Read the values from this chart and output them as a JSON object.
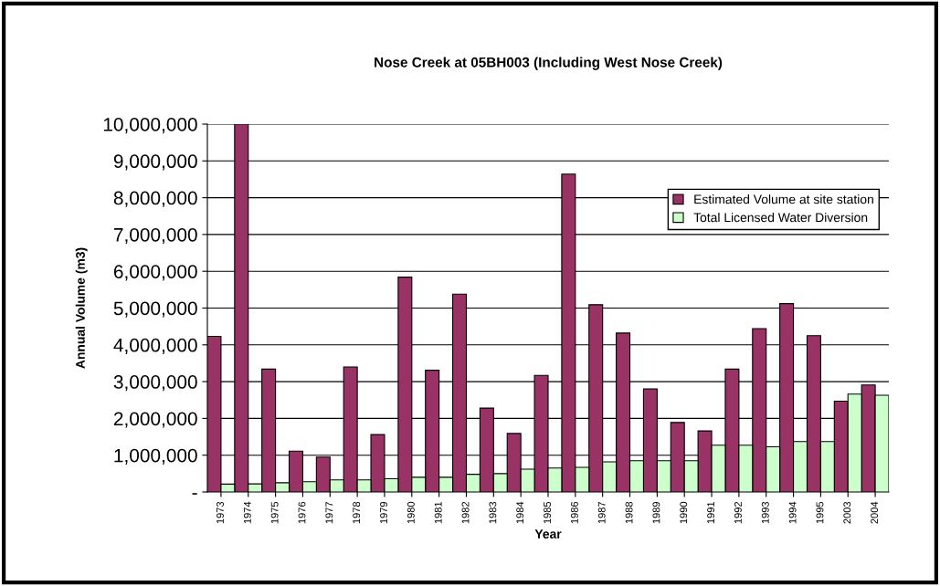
{
  "chart_data": {
    "type": "bar",
    "title": "Nose Creek at 05BH003 (Including West Nose Creek)",
    "xlabel": "Year",
    "ylabel": "Annual Volume (m3)",
    "categories": [
      "1973",
      "1974",
      "1975",
      "1976",
      "1977",
      "1978",
      "1979",
      "1980",
      "1981",
      "1982",
      "1983",
      "1984",
      "1985",
      "1986",
      "1987",
      "1988",
      "1989",
      "1990",
      "1991",
      "1992",
      "1993",
      "1994",
      "1995",
      "2003",
      "2004"
    ],
    "series": [
      {
        "name": "Estimated Volume at site station",
        "color": "#993366",
        "values": [
          4230000,
          10000000,
          3340000,
          1110000,
          950000,
          3400000,
          1560000,
          5840000,
          3310000,
          5380000,
          2280000,
          1590000,
          3170000,
          8640000,
          5090000,
          4320000,
          2800000,
          1890000,
          1660000,
          3340000,
          4440000,
          5120000,
          4250000,
          2470000,
          2910000
        ]
      },
      {
        "name": "Total Licensed Water Diversion",
        "color": "#ccffcc",
        "values": [
          215000,
          220000,
          250000,
          280000,
          330000,
          330000,
          360000,
          400000,
          400000,
          480000,
          500000,
          620000,
          650000,
          670000,
          820000,
          850000,
          850000,
          850000,
          1270000,
          1270000,
          1230000,
          1370000,
          1370000,
          2660000,
          2630000
        ]
      }
    ],
    "ylim": [
      0,
      10000000
    ],
    "yticks": [
      {
        "value": 0,
        "label": "-"
      },
      {
        "value": 1000000,
        "label": "1,000,000"
      },
      {
        "value": 2000000,
        "label": "2,000,000"
      },
      {
        "value": 3000000,
        "label": "3,000,000"
      },
      {
        "value": 4000000,
        "label": "4,000,000"
      },
      {
        "value": 5000000,
        "label": "5,000,000"
      },
      {
        "value": 6000000,
        "label": "6,000,000"
      },
      {
        "value": 7000000,
        "label": "7,000,000"
      },
      {
        "value": 8000000,
        "label": "8,000,000"
      },
      {
        "value": 9000000,
        "label": "9,000,000"
      },
      {
        "value": 10000000,
        "label": "10,000,000"
      }
    ],
    "grid": "y",
    "legend": "top right"
  }
}
